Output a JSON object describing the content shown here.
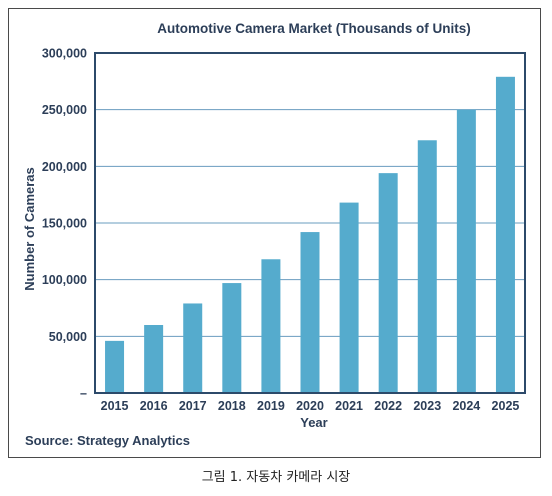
{
  "chart_data": {
    "type": "bar",
    "title": "Automotive Camera Market (Thousands of Units)",
    "xlabel": "Year",
    "ylabel": "Number of Cameras",
    "categories": [
      "2015",
      "2016",
      "2017",
      "2018",
      "2019",
      "2020",
      "2021",
      "2022",
      "2023",
      "2024",
      "2025"
    ],
    "values": [
      46000,
      60000,
      79000,
      97000,
      118000,
      142000,
      168000,
      194000,
      223000,
      250000,
      279000
    ],
    "ylim": [
      0,
      300000
    ],
    "yticks": [
      0,
      50000,
      100000,
      150000,
      200000,
      250000,
      300000
    ],
    "ytick_labels": [
      "–",
      "50,000",
      "100,000",
      "150,000",
      "200,000",
      "250,000",
      "300,000"
    ],
    "grid": true,
    "legend": "none",
    "source": "Source: Strategy Analytics",
    "colors": {
      "bar": "#55abcd",
      "grid": "#6a9cbf",
      "axis": "#2c4a6a",
      "text": "#2c3e58"
    }
  },
  "caption": "그림 1. 자동차 카메라 시장"
}
